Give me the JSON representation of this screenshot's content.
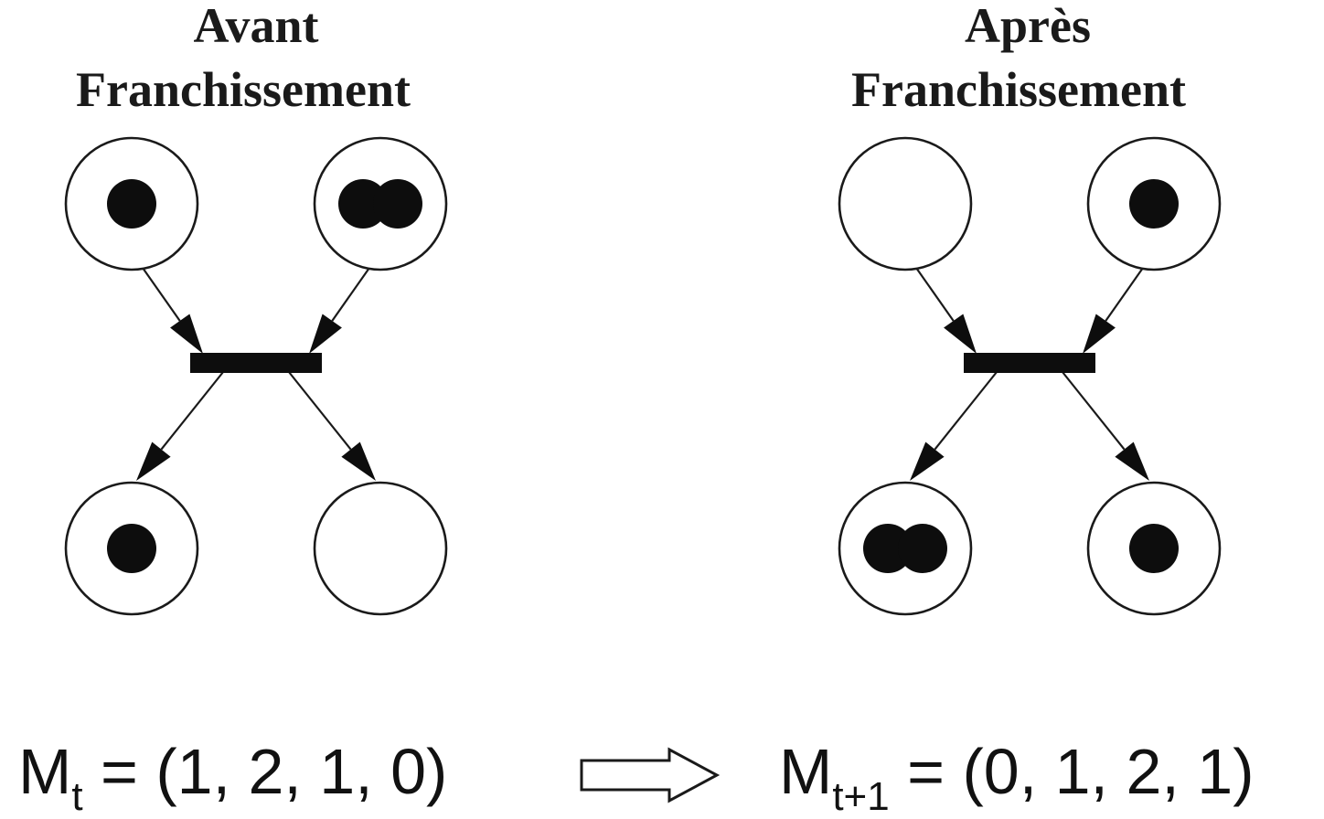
{
  "before": {
    "title_line1": "Avant",
    "title_line2": "Franchissement",
    "marking": [
      1,
      2,
      1,
      0
    ],
    "formula_base": "M",
    "formula_sub": "t",
    "formula_rest": " = (1, 2, 1, 0)"
  },
  "after": {
    "title_line1": "Après",
    "title_line2": "Franchissement",
    "marking": [
      0,
      1,
      2,
      1
    ],
    "formula_base": "M",
    "formula_sub": "t+1",
    "formula_rest": " = (0, 1, 2, 1)"
  },
  "implies_arrow": "hollow-right-arrow"
}
